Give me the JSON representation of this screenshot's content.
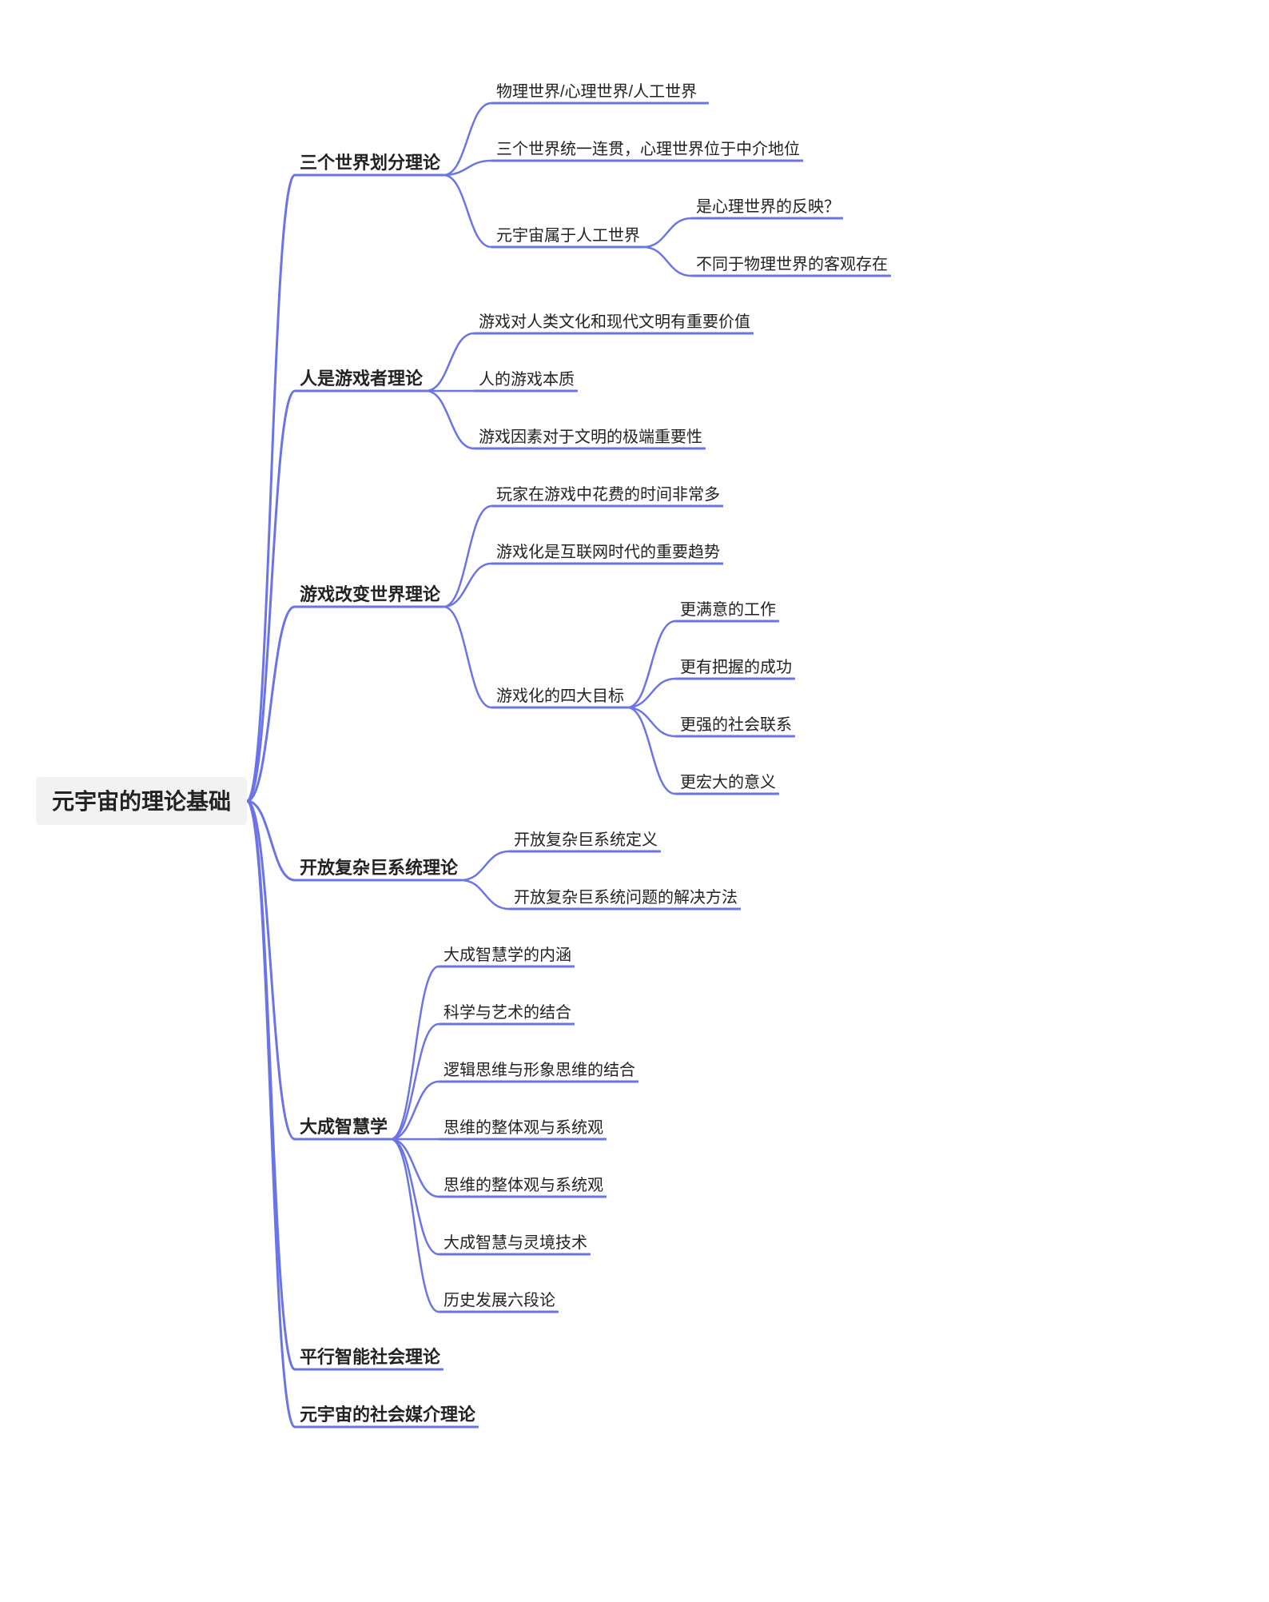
{
  "mindmap": {
    "type": "tree",
    "line_color": "#6b74e6",
    "background_color": "#ffffff",
    "root_bg_color": "#f2f2f2",
    "root_font_size": 28,
    "branch_font_size": 22,
    "leaf_font_size": 20,
    "root": {
      "label": "元宇宙的理论基础"
    },
    "branches": [
      {
        "label": "三个世界划分理论",
        "children": [
          {
            "label": "物理世界/心理世界/人工世界"
          },
          {
            "label": "三个世界统一连贯，心理世界位于中介地位"
          },
          {
            "label": "元宇宙属于人工世界",
            "children": [
              {
                "label": "是心理世界的反映？"
              },
              {
                "label": "不同于物理世界的客观存在"
              }
            ]
          }
        ]
      },
      {
        "label": "人是游戏者理论",
        "children": [
          {
            "label": "游戏对人类文化和现代文明有重要价值"
          },
          {
            "label": "人的游戏本质"
          },
          {
            "label": "游戏因素对于文明的极端重要性"
          }
        ]
      },
      {
        "label": "游戏改变世界理论",
        "children": [
          {
            "label": "玩家在游戏中花费的时间非常多"
          },
          {
            "label": "游戏化是互联网时代的重要趋势"
          },
          {
            "label": "游戏化的四大目标",
            "children": [
              {
                "label": "更满意的工作"
              },
              {
                "label": "更有把握的成功"
              },
              {
                "label": "更强的社会联系"
              },
              {
                "label": "更宏大的意义"
              }
            ]
          }
        ]
      },
      {
        "label": "开放复杂巨系统理论",
        "children": [
          {
            "label": "开放复杂巨系统定义"
          },
          {
            "label": "开放复杂巨系统问题的解决方法"
          }
        ]
      },
      {
        "label": "大成智慧学",
        "children": [
          {
            "label": "大成智慧学的内涵"
          },
          {
            "label": "科学与艺术的结合"
          },
          {
            "label": "逻辑思维与形象思维的结合"
          },
          {
            "label": "思维的整体观与系统观"
          },
          {
            "label": "思维的整体观与系统观"
          },
          {
            "label": "大成智慧与灵境技术"
          },
          {
            "label": "历史发展六段论"
          }
        ]
      },
      {
        "label": "平行智能社会理论",
        "children": []
      },
      {
        "label": "元宇宙的社会媒介理论",
        "children": []
      }
    ]
  }
}
